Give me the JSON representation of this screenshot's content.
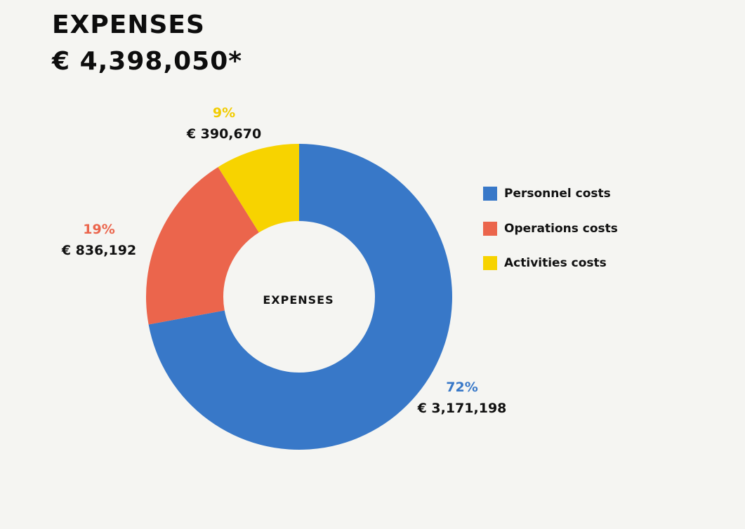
{
  "header": {
    "title": "EXPENSES",
    "total": "€ 4,398,050*"
  },
  "colors": {
    "personnel": "#3878c8",
    "operations": "#eb654c",
    "activities": "#f7d300",
    "background": "#f5f5f2"
  },
  "chart_data": {
    "type": "pie",
    "variant": "donut",
    "title": "EXPENSES",
    "center_label": "EXPENSES",
    "legend_position": "right",
    "slices": [
      {
        "name": "Personnel costs",
        "value": 3171198,
        "percent_label": "72%",
        "amount_label": "€ 3,171,198",
        "color": "#3878c8"
      },
      {
        "name": "Operations costs",
        "value": 836192,
        "percent_label": "19%",
        "amount_label": "€ 836,192",
        "color": "#eb654c"
      },
      {
        "name": "Activities costs",
        "value": 390670,
        "percent_label": "9%",
        "amount_label": "€ 390,670",
        "color": "#f7d300"
      }
    ]
  }
}
